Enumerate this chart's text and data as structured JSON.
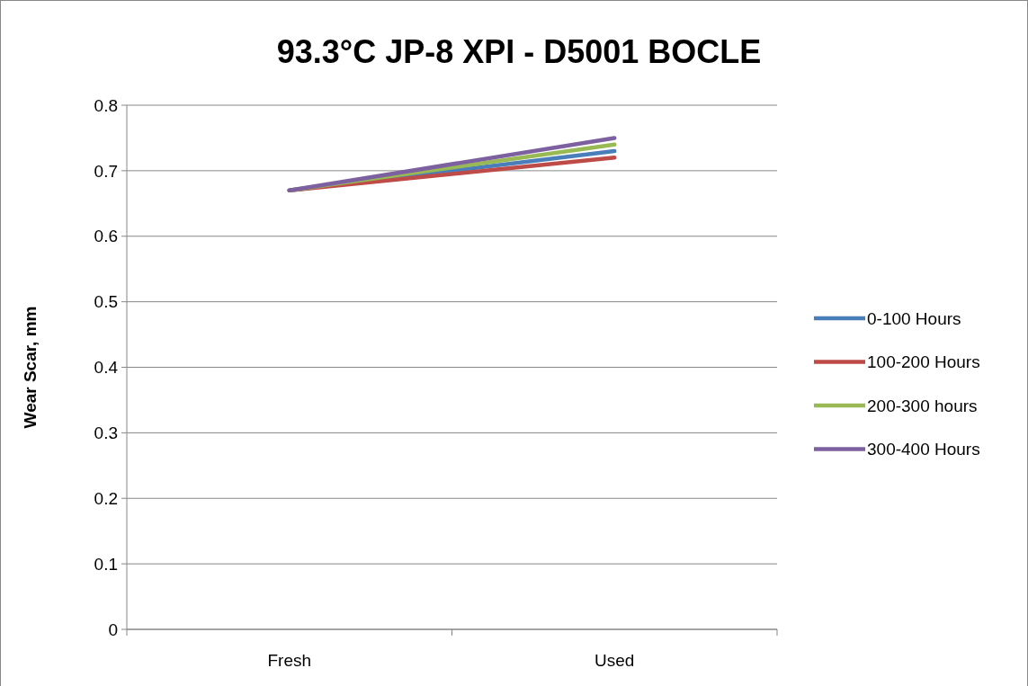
{
  "chart_data": {
    "type": "line",
    "title": "93.3°C JP-8 XPI - D5001 BOCLE",
    "ylabel": "Wear Scar, mm",
    "categories": [
      "Fresh",
      "Used"
    ],
    "series": [
      {
        "name": "0-100 Hours",
        "color": "#4a7ebb",
        "values": [
          0.67,
          0.73
        ]
      },
      {
        "name": "100-200 Hours",
        "color": "#be4b48",
        "values": [
          0.67,
          0.72
        ]
      },
      {
        "name": "200-300 hours",
        "color": "#98b954",
        "values": [
          0.67,
          0.74
        ]
      },
      {
        "name": "300-400 Hours",
        "color": "#7d60a0",
        "values": [
          0.67,
          0.75
        ]
      }
    ],
    "ylim": [
      0,
      0.8
    ],
    "yticks": [
      0,
      0.1,
      0.2,
      0.3,
      0.4,
      0.5,
      0.6,
      0.7,
      0.8
    ],
    "grid": "y",
    "legend": "right",
    "marker": "none",
    "line_style": "solid"
  }
}
